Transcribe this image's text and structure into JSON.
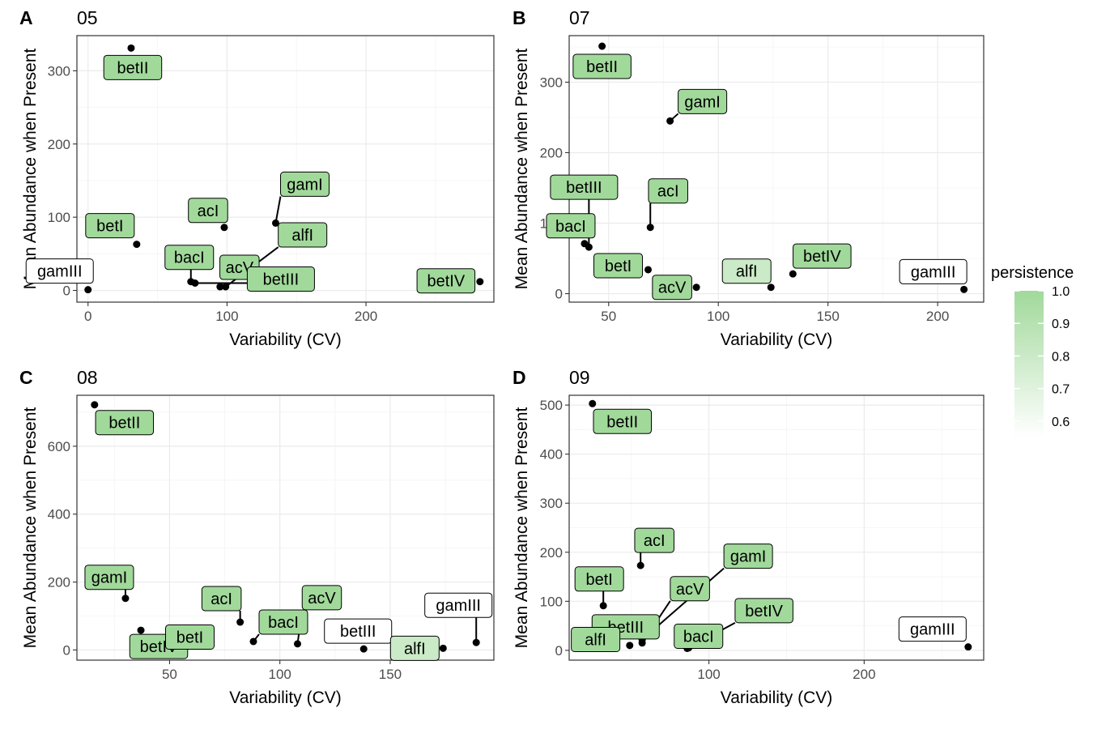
{
  "legend": {
    "title": "persistence",
    "ticks": [
      1.0,
      0.9,
      0.8,
      0.7,
      0.6
    ],
    "tick_labels": [
      "1.0",
      "0.9",
      "0.8",
      "0.7",
      "0.6"
    ],
    "range": [
      0.55,
      1.0
    ],
    "color_low": "#ffffff",
    "color_high": "#a1d99b"
  },
  "chart_data": [
    {
      "type": "scatter",
      "tag": "A",
      "title": "05",
      "xlabel": "Variability (CV)",
      "ylabel": "Mean Abundance when Present",
      "xlim": [
        -8,
        292
      ],
      "ylim": [
        -16,
        348
      ],
      "xticks": [
        0,
        100,
        200
      ],
      "yticks": [
        0,
        100,
        200,
        300
      ],
      "grid": true,
      "points": [
        {
          "name": "betII",
          "x": 31,
          "y": 331,
          "persistence": 1.0
        },
        {
          "name": "betI",
          "x": 35,
          "y": 63,
          "persistence": 1.0
        },
        {
          "name": "gamIII",
          "x": 0,
          "y": 1,
          "persistence": 0.55
        },
        {
          "name": "acI",
          "x": 98,
          "y": 86,
          "persistence": 1.0
        },
        {
          "name": "gamI",
          "x": 135,
          "y": 92,
          "persistence": 1.0
        },
        {
          "name": "alfI",
          "x": 99,
          "y": 5,
          "persistence": 1.0
        },
        {
          "name": "bacI",
          "x": 74,
          "y": 12,
          "persistence": 1.0
        },
        {
          "name": "acV",
          "x": 95,
          "y": 5,
          "persistence": 1.0
        },
        {
          "name": "betIII",
          "x": 77,
          "y": 10,
          "persistence": 1.0
        },
        {
          "name": "betIV",
          "x": 282,
          "y": 12,
          "persistence": 1.0
        }
      ]
    },
    {
      "type": "scatter",
      "tag": "B",
      "title": "07",
      "xlabel": "Variability (CV)",
      "ylabel": "Mean Abundance when Present",
      "xlim": [
        32,
        221
      ],
      "ylim": [
        -12,
        366
      ],
      "xticks": [
        50,
        100,
        150,
        200
      ],
      "yticks": [
        0,
        100,
        200,
        300
      ],
      "grid": true,
      "points": [
        {
          "name": "betII",
          "x": 47,
          "y": 351,
          "persistence": 1.0
        },
        {
          "name": "gamI",
          "x": 78,
          "y": 245,
          "persistence": 1.0
        },
        {
          "name": "acI",
          "x": 69,
          "y": 94,
          "persistence": 1.0
        },
        {
          "name": "bacI",
          "x": 39,
          "y": 71,
          "persistence": 1.0
        },
        {
          "name": "betI",
          "x": 68,
          "y": 34,
          "persistence": 1.0
        },
        {
          "name": "betIII",
          "x": 41,
          "y": 66,
          "persistence": 1.0
        },
        {
          "name": "acV",
          "x": 90,
          "y": 9,
          "persistence": 1.0
        },
        {
          "name": "alfI",
          "x": 124,
          "y": 9,
          "persistence": 0.8
        },
        {
          "name": "betIV",
          "x": 134,
          "y": 28,
          "persistence": 1.0
        },
        {
          "name": "gamIII",
          "x": 212,
          "y": 6,
          "persistence": 0.55
        }
      ]
    },
    {
      "type": "scatter",
      "tag": "C",
      "title": "08",
      "xlabel": "Variability (CV)",
      "ylabel": "Mean Abundance when Present",
      "xlim": [
        8,
        197
      ],
      "ylim": [
        -30,
        750
      ],
      "xticks": [
        50,
        100,
        150
      ],
      "yticks": [
        0,
        200,
        400,
        600
      ],
      "grid": true,
      "points": [
        {
          "name": "betII",
          "x": 16,
          "y": 722,
          "persistence": 1.0
        },
        {
          "name": "gamI",
          "x": 30,
          "y": 152,
          "persistence": 1.0
        },
        {
          "name": "betIV",
          "x": 37,
          "y": 58,
          "persistence": 1.0
        },
        {
          "name": "betI",
          "x": 68,
          "y": 38,
          "persistence": 1.0
        },
        {
          "name": "acI",
          "x": 82,
          "y": 82,
          "persistence": 1.0
        },
        {
          "name": "bacI",
          "x": 88,
          "y": 25,
          "persistence": 1.0
        },
        {
          "name": "acV",
          "x": 108,
          "y": 18,
          "persistence": 1.0
        },
        {
          "name": "betIII",
          "x": 138,
          "y": 3,
          "persistence": 0.55
        },
        {
          "name": "alfI",
          "x": 174,
          "y": 5,
          "persistence": 0.8
        },
        {
          "name": "gamIII",
          "x": 189,
          "y": 22,
          "persistence": 0.55
        }
      ]
    },
    {
      "type": "scatter",
      "tag": "D",
      "title": "09",
      "xlabel": "Variability (CV)",
      "ylabel": "Mean Abundance when Present",
      "xlim": [
        10,
        277
      ],
      "ylim": [
        -20,
        520
      ],
      "xticks": [
        100,
        200
      ],
      "yticks": [
        0,
        100,
        200,
        300,
        400,
        500
      ],
      "grid": true,
      "points": [
        {
          "name": "betII",
          "x": 25,
          "y": 503,
          "persistence": 1.0
        },
        {
          "name": "acI",
          "x": 56,
          "y": 173,
          "persistence": 1.0
        },
        {
          "name": "betI",
          "x": 32,
          "y": 91,
          "persistence": 1.0
        },
        {
          "name": "gamI",
          "x": 57,
          "y": 22,
          "persistence": 1.0
        },
        {
          "name": "acV",
          "x": 57,
          "y": 15,
          "persistence": 1.0
        },
        {
          "name": "betIII",
          "x": 49,
          "y": 10,
          "persistence": 1.0
        },
        {
          "name": "alfI",
          "x": 39,
          "y": 4,
          "persistence": 1.0
        },
        {
          "name": "bacI",
          "x": 86,
          "y": 4,
          "persistence": 1.0
        },
        {
          "name": "betIV",
          "x": 87,
          "y": 5,
          "persistence": 1.0
        },
        {
          "name": "gamIII",
          "x": 267,
          "y": 7,
          "persistence": 0.55
        }
      ]
    }
  ]
}
